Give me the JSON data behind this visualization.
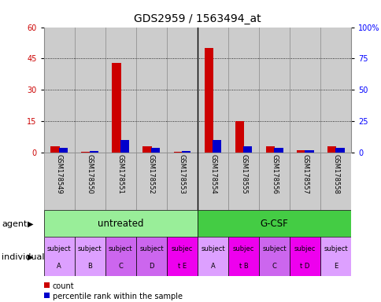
{
  "title": "GDS2959 / 1563494_at",
  "samples": [
    "GSM178549",
    "GSM178550",
    "GSM178551",
    "GSM178552",
    "GSM178553",
    "GSM178554",
    "GSM178555",
    "GSM178556",
    "GSM178557",
    "GSM178558"
  ],
  "count": [
    3.0,
    0.5,
    43.0,
    3.0,
    0.5,
    50.0,
    15.0,
    3.0,
    1.0,
    3.0
  ],
  "percentile": [
    4.0,
    1.0,
    10.0,
    3.5,
    1.0,
    10.0,
    5.0,
    3.5,
    2.0,
    4.0
  ],
  "ylim_left": [
    0,
    60
  ],
  "ylim_right": [
    0,
    100
  ],
  "yticks_left": [
    0,
    15,
    30,
    45,
    60
  ],
  "ytick_labels_left": [
    "0",
    "15",
    "30",
    "45",
    "60"
  ],
  "yticks_right": [
    0,
    25,
    50,
    75,
    100
  ],
  "ytick_labels_right": [
    "0",
    "25",
    "50",
    "75",
    "100%"
  ],
  "bar_width": 0.3,
  "count_color": "#cc0000",
  "percentile_color": "#0000cc",
  "agent_untreated_color": "#99ee99",
  "agent_gcsf_color": "#44cc44",
  "individual_colors": [
    "#dda0ff",
    "#dda0ff",
    "#cc66ee",
    "#cc66ee",
    "#ee00ee",
    "#dda0ff",
    "#ee00ee",
    "#cc66ee",
    "#ee00ee",
    "#dda0ff"
  ],
  "agent_label_untreated": "untreated",
  "agent_label_gcsf": "G-CSF",
  "individual_labels_line1": [
    "subject",
    "subject",
    "subject",
    "subject",
    "subjec",
    "subject",
    "subjec",
    "subject",
    "subjec",
    "subject"
  ],
  "individual_labels_line2": [
    "A",
    "B",
    "C",
    "D",
    "t E",
    "A",
    "t B",
    "C",
    "t D",
    "E"
  ],
  "legend_count": "count",
  "legend_percentile": "percentile rank within the sample",
  "cell_bg_color": "#cccccc",
  "cell_border_color": "#888888",
  "title_fontsize": 10,
  "tick_fontsize": 7,
  "label_fontsize": 8,
  "ind_fontsize": 6
}
